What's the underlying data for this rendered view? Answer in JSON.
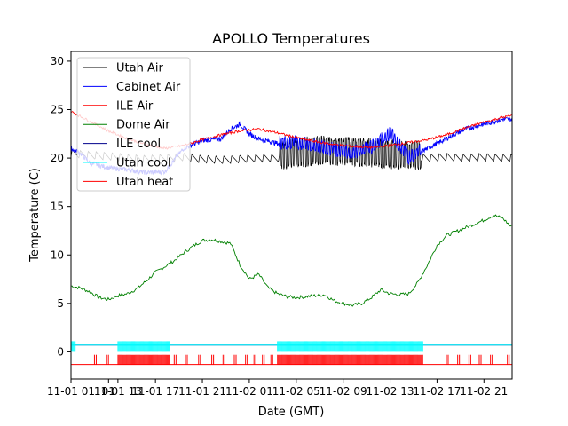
{
  "chart_data": {
    "type": "line",
    "title": "APOLLO Temperatures",
    "xlabel": "Date (GMT)",
    "ylabel": "Temperature (C)",
    "xlim": [
      0,
      47
    ],
    "ylim": [
      -2.8,
      31
    ],
    "x_unit": "hours since 2019-11-01 00:00 GMT",
    "x_ticks": [
      {
        "x": 0,
        "label": "11-01 01"
      },
      {
        "x": 4,
        "label": "01"
      },
      {
        "x": 5,
        "label": "11-01 13"
      },
      {
        "x": 9,
        "label": "11-01 17"
      },
      {
        "x": 14,
        "label": "11-01 21"
      },
      {
        "x": 19,
        "label": "11-02 01"
      },
      {
        "x": 24,
        "label": "11-02 05"
      },
      {
        "x": 29,
        "label": "11-02 09"
      },
      {
        "x": 34,
        "label": "11-02 13"
      },
      {
        "x": 39,
        "label": "11-02 17"
      },
      {
        "x": 44,
        "label": "11-02 21"
      }
    ],
    "y_ticks": [
      0,
      5,
      10,
      15,
      20,
      25,
      30
    ],
    "legend_position": "upper-left",
    "series": [
      {
        "name": "Utah Air",
        "color": "#000000",
        "x": [
          0,
          2,
          4,
          6,
          8,
          10,
          12,
          14,
          16,
          18,
          20,
          22,
          24,
          26,
          28,
          30,
          32,
          34,
          36,
          38,
          40,
          42,
          44,
          46,
          47
        ],
        "y": [
          20.5,
          20.3,
          20.2,
          20.0,
          19.9,
          20.0,
          20.1,
          19.9,
          19.8,
          19.9,
          20.0,
          20.0,
          20.3,
          20.5,
          20.5,
          20.4,
          20.3,
          20.1,
          20.1,
          20.0,
          20.1,
          20.0,
          20.1,
          20.0,
          20.0
        ]
      },
      {
        "name": "Cabinet Air",
        "color": "#0000ff",
        "x": [
          0,
          1,
          2,
          4,
          6,
          8,
          10,
          12,
          14,
          16,
          17,
          18,
          19,
          20,
          22,
          24,
          26,
          28,
          30,
          32,
          34,
          36,
          38,
          40,
          42,
          44,
          46,
          47
        ],
        "y": [
          21.0,
          20.5,
          19.5,
          19.0,
          18.8,
          18.5,
          18.6,
          21.0,
          21.8,
          22.0,
          23.0,
          23.5,
          22.5,
          22.0,
          21.5,
          21.5,
          21.2,
          20.8,
          20.5,
          21.0,
          22.5,
          20.0,
          21.0,
          22.0,
          23.0,
          23.5,
          24.0,
          24.0
        ]
      },
      {
        "name": "ILE Air",
        "color": "#ff0000",
        "x": [
          0,
          2,
          4,
          6,
          8,
          10,
          12,
          14,
          16,
          18,
          20,
          22,
          24,
          26,
          28,
          30,
          32,
          34,
          36,
          38,
          40,
          42,
          44,
          46,
          47
        ],
        "y": [
          24.8,
          23.8,
          22.8,
          22.0,
          21.4,
          21.0,
          21.3,
          21.9,
          22.4,
          22.8,
          23.0,
          22.6,
          22.1,
          21.7,
          21.4,
          21.2,
          21.1,
          21.3,
          21.6,
          21.9,
          22.4,
          23.1,
          23.7,
          24.2,
          24.4
        ]
      },
      {
        "name": "Dome Air",
        "color": "#008000",
        "x": [
          0,
          1,
          2,
          3,
          4,
          5,
          6,
          7,
          8,
          9,
          10,
          11,
          12,
          13,
          14,
          15,
          16,
          17,
          18,
          19,
          20,
          21,
          22,
          23,
          24,
          25,
          26,
          27,
          28,
          29,
          30,
          31,
          32,
          33,
          34,
          35,
          36,
          37,
          38,
          39,
          40,
          41,
          42,
          43,
          44,
          45,
          46,
          47
        ],
        "y": [
          6.8,
          6.6,
          6.2,
          5.6,
          5.4,
          5.8,
          6.0,
          6.5,
          7.3,
          8.2,
          8.8,
          9.4,
          10.2,
          10.9,
          11.5,
          11.6,
          11.4,
          11.2,
          9.0,
          7.5,
          8.0,
          6.6,
          6.0,
          5.7,
          5.6,
          5.7,
          5.8,
          5.9,
          5.3,
          5.0,
          4.8,
          5.0,
          5.6,
          6.4,
          6.0,
          5.9,
          6.0,
          7.2,
          9.0,
          11.0,
          12.0,
          12.4,
          12.8,
          13.2,
          13.6,
          14.1,
          13.8,
          12.8
        ]
      },
      {
        "name": "ILE cool",
        "color": "#00008b",
        "x": [
          0,
          47
        ],
        "y": [
          0.7,
          0.7
        ]
      },
      {
        "name": "Utah cool",
        "color": "#00ffff",
        "x": [
          0,
          47
        ],
        "y": [
          0.7,
          0.7
        ],
        "active_intervals": [
          [
            0,
            0.5
          ],
          [
            5,
            10.5
          ],
          [
            22,
            37.5
          ]
        ],
        "high": 1.1,
        "low": 0.0
      },
      {
        "name": "Utah heat",
        "color": "#ff0000",
        "x": [
          0,
          47
        ],
        "y": [
          -1.3,
          -1.3
        ],
        "active_intervals": [
          [
            5,
            10.5
          ],
          [
            22,
            37.5
          ]
        ],
        "pulses": [
          2.5,
          3.8,
          11.0,
          12.2,
          13.6,
          15.0,
          16.2,
          17.4,
          18.6,
          19.5,
          20.4,
          21.3,
          40.0,
          41.2,
          42.4,
          43.5,
          44.7,
          46.5
        ],
        "high": -0.3,
        "low": -1.3
      }
    ]
  }
}
